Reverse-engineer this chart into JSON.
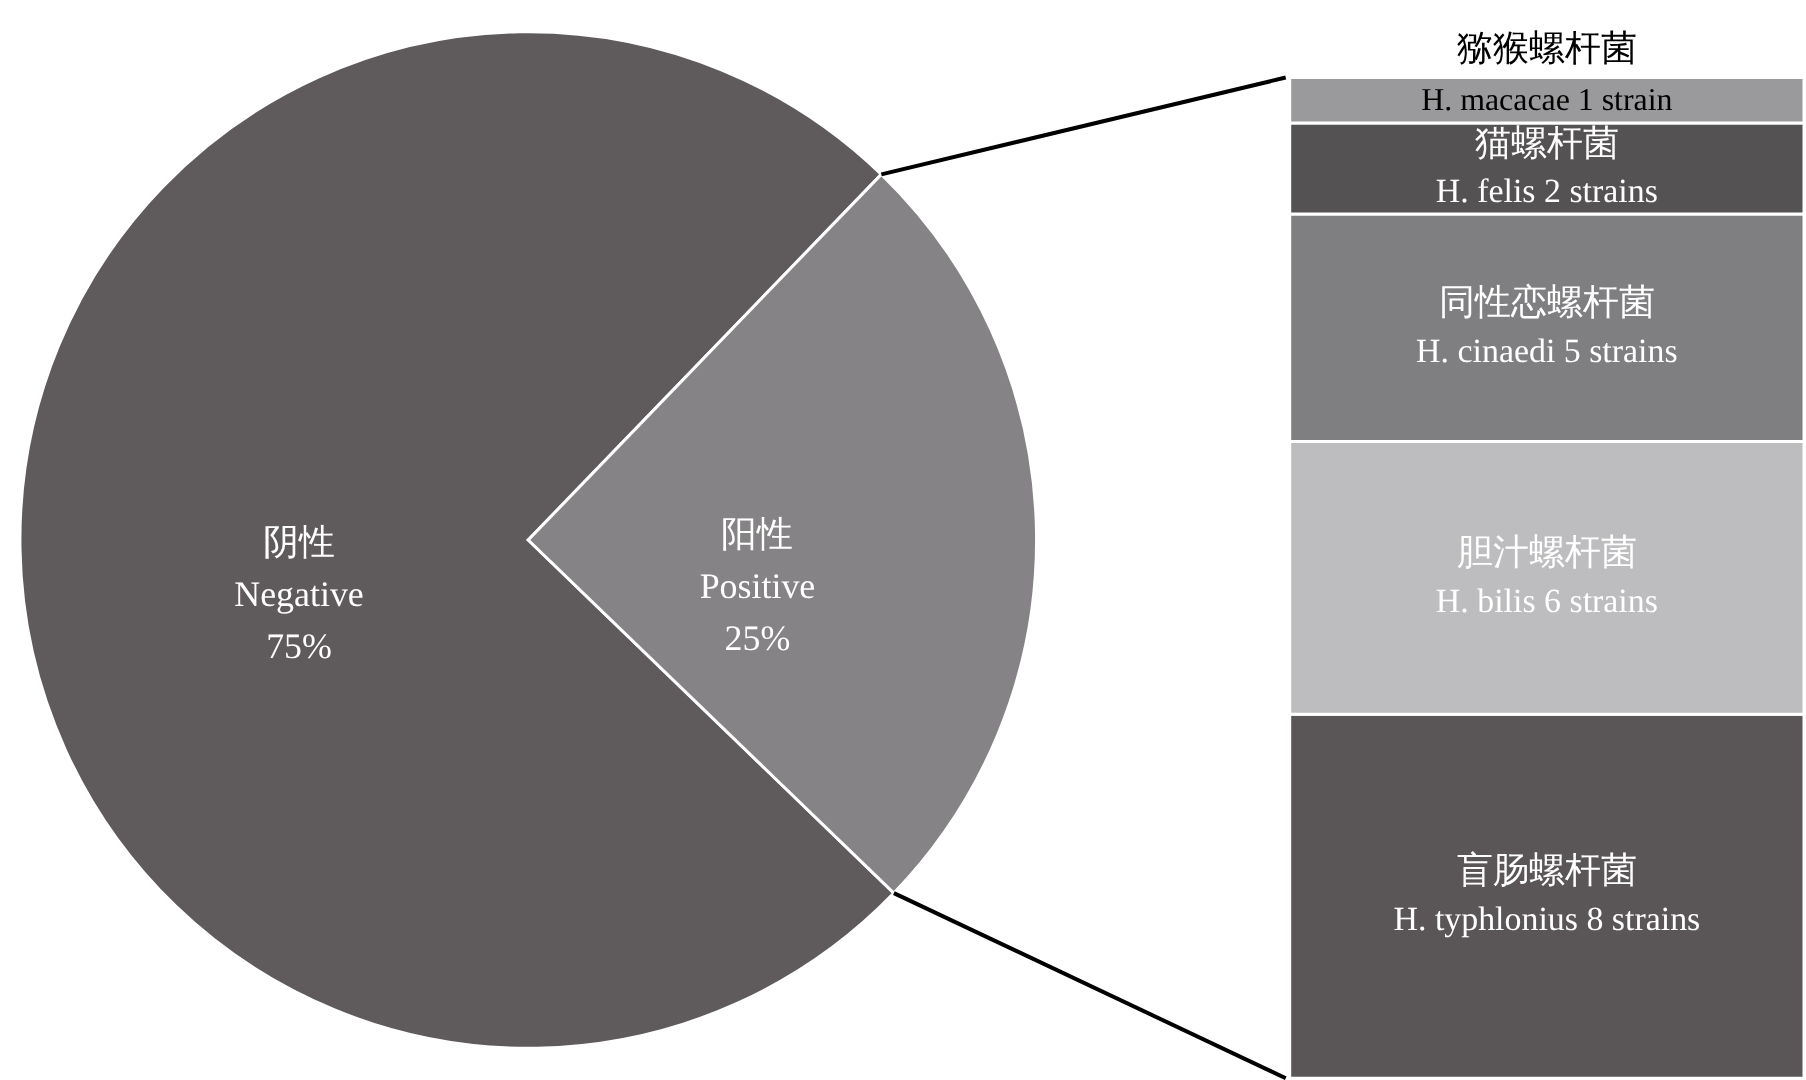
{
  "chart_data": [
    {
      "type": "pie",
      "categories": [
        "阴性\nNegative",
        "阳性\nPositive"
      ],
      "values": [
        75,
        25
      ],
      "colors": [
        "#5f5a5c",
        "#858385"
      ],
      "value_labels": [
        "75%",
        "25%"
      ]
    },
    {
      "type": "bar",
      "stacked": true,
      "categories": [
        null
      ],
      "series": [
        {
          "name": "盲肠螺杆菌",
          "color": "#5a5658",
          "values": [
            8
          ],
          "value_labels": [
            "H. typhlonius 8 strains"
          ]
        },
        {
          "name": "胆汁螺杆菌",
          "color": "#bdbcbe",
          "values": [
            6
          ],
          "value_labels": [
            "H. bilis 6 strains"
          ]
        },
        {
          "name": "同性恋螺杆菌",
          "color": "#7f7e80",
          "values": [
            5
          ],
          "value_labels": [
            "H. cinaedi 5 strains"
          ]
        },
        {
          "name": "猫螺杆菌",
          "color": "#555254",
          "values": [
            2
          ],
          "value_labels": [
            "H. felis 2 strains"
          ]
        },
        {
          "name": "猕猴螺杆菌",
          "color": "#9a999b",
          "values": [
            1
          ],
          "value_labels": [
            "H. macacae 1 strain"
          ]
        }
      ]
    }
  ]
}
